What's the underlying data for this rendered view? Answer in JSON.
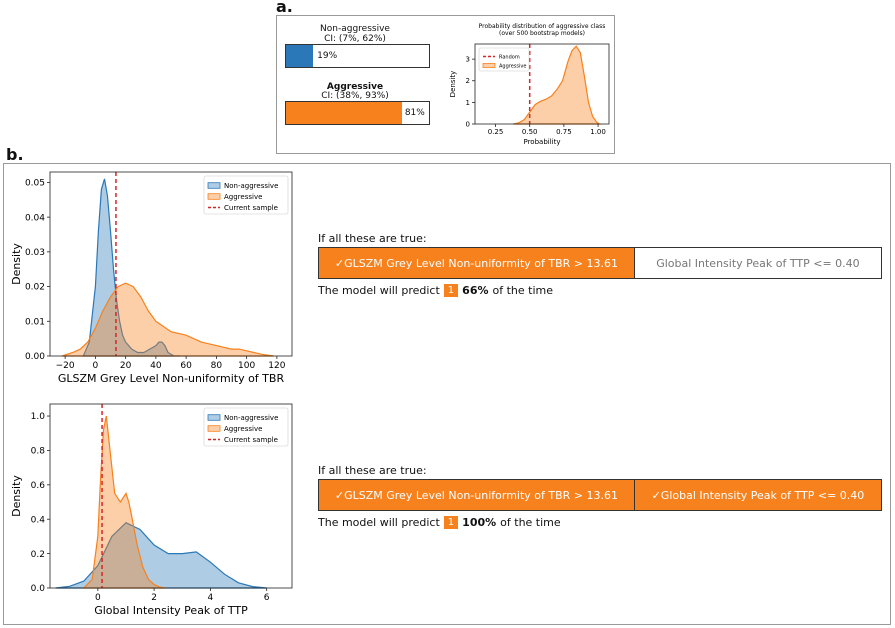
{
  "panel_a": {
    "label": "a.",
    "non_aggressive": {
      "title": "Non-aggressive",
      "ci": "CI: (7%, 62%)",
      "value_label": "19%",
      "value": 0.19,
      "color": "#2a78b8"
    },
    "aggressive": {
      "title": "Aggressive",
      "ci": "CI: (38%, 93%)",
      "value_label": "81%",
      "value": 0.81,
      "color": "#f7811d"
    }
  },
  "panel_b": {
    "label": "b.",
    "row1": {
      "intro": "If all these are true:",
      "rules": [
        {
          "text": "✓GLSZM Grey Level Non-uniformity of TBR > 13.61",
          "met": true
        },
        {
          "text": "Global Intensity Peak of TTP <= 0.40",
          "met": false
        }
      ],
      "predict_prefix": "The model will predict",
      "predict_class": "1",
      "predict_pct": "66%",
      "predict_suffix": "of the time"
    },
    "row2": {
      "intro": "If all these are true:",
      "rules": [
        {
          "text": "✓GLSZM Grey Level Non-uniformity of TBR > 13.61",
          "met": true
        },
        {
          "text": "✓Global Intensity Peak of TTP <= 0.40",
          "met": true
        }
      ],
      "predict_prefix": "The model will predict",
      "predict_class": "1",
      "predict_pct": "100%",
      "predict_suffix": "of the time"
    }
  },
  "colors": {
    "blue": "#2a78b8",
    "orange": "#f7811d",
    "red": "#d62728"
  },
  "chart_data": [
    {
      "id": "prob_dist",
      "type": "area",
      "title": "Probability distribution of aggressive class",
      "subtitle": "(over 500 bootstrap models)",
      "xlabel": "Probability",
      "ylabel": "Density",
      "xlim": [
        0.1,
        1.08
      ],
      "ylim": [
        0,
        3.7
      ],
      "xticks": [
        0.25,
        0.5,
        0.75,
        1.0
      ],
      "xtick_labels": [
        "0.25",
        "0.50",
        "0.75",
        "1.00"
      ],
      "yticks": [
        0,
        1,
        2,
        3
      ],
      "ytick_labels": [
        "0",
        "1",
        "2",
        "3"
      ],
      "legend": [
        "Random",
        "Aggressive"
      ],
      "legend_position": "top-left",
      "vline": 0.5,
      "series": [
        {
          "name": "Aggressive",
          "x": [
            0.38,
            0.42,
            0.46,
            0.5,
            0.54,
            0.58,
            0.62,
            0.66,
            0.7,
            0.74,
            0.78,
            0.81,
            0.84,
            0.87,
            0.9,
            0.93,
            0.96,
            0.99,
            1.01
          ],
          "y": [
            0,
            0.05,
            0.2,
            0.55,
            0.9,
            1.05,
            1.15,
            1.3,
            1.6,
            2.0,
            2.9,
            3.4,
            3.6,
            3.3,
            2.2,
            1.0,
            0.35,
            0.08,
            0
          ]
        }
      ]
    },
    {
      "id": "glszm_tbr",
      "type": "area",
      "xlabel": "GLSZM Grey Level Non-uniformity of TBR",
      "ylabel": "Density",
      "xlim": [
        -30,
        130
      ],
      "ylim": [
        0,
        0.053
      ],
      "xticks": [
        -20,
        0,
        20,
        40,
        60,
        80,
        100,
        120
      ],
      "xtick_labels": [
        "−20",
        "0",
        "20",
        "40",
        "60",
        "80",
        "100",
        "120"
      ],
      "yticks": [
        0,
        0.01,
        0.02,
        0.03,
        0.04,
        0.05
      ],
      "ytick_labels": [
        "0.00",
        "0.01",
        "0.02",
        "0.03",
        "0.04",
        "0.05"
      ],
      "legend": [
        "Non-aggressive",
        "Aggressive",
        "Current sample"
      ],
      "legend_position": "top-right",
      "vline": 13.6,
      "series": [
        {
          "name": "Non-aggressive",
          "x": [
            -8,
            -4,
            0,
            2,
            4,
            6,
            8,
            10,
            12,
            14,
            16,
            18,
            20,
            24,
            28,
            32,
            36,
            40,
            42,
            44,
            46,
            48,
            52,
            56
          ],
          "y": [
            0,
            0.004,
            0.02,
            0.036,
            0.048,
            0.051,
            0.046,
            0.036,
            0.025,
            0.016,
            0.01,
            0.006,
            0.004,
            0.002,
            0.001,
            0.001,
            0.002,
            0.003,
            0.004,
            0.004,
            0.003,
            0.001,
            0,
            0
          ]
        },
        {
          "name": "Aggressive",
          "x": [
            -22,
            -15,
            -10,
            -5,
            0,
            5,
            10,
            15,
            20,
            25,
            30,
            35,
            40,
            50,
            60,
            70,
            80,
            90,
            95,
            100,
            110,
            118
          ],
          "y": [
            0,
            0.001,
            0.002,
            0.004,
            0.008,
            0.013,
            0.017,
            0.02,
            0.021,
            0.02,
            0.017,
            0.013,
            0.01,
            0.007,
            0.006,
            0.004,
            0.003,
            0.002,
            0.002,
            0.0015,
            0.0005,
            0
          ]
        }
      ]
    },
    {
      "id": "gip_ttp",
      "type": "area",
      "xlabel": "Global Intensity Peak of TTP",
      "ylabel": "Density",
      "xlim": [
        -1.7,
        6.9
      ],
      "ylim": [
        0,
        1.07
      ],
      "xticks": [
        0,
        2,
        4,
        6
      ],
      "xtick_labels": [
        "0",
        "2",
        "4",
        "6"
      ],
      "yticks": [
        0,
        0.2,
        0.4,
        0.6,
        0.8,
        1.0
      ],
      "ytick_labels": [
        "0.0",
        "0.2",
        "0.4",
        "0.6",
        "0.8",
        "1.0"
      ],
      "legend": [
        "Non-aggressive",
        "Aggressive",
        "Current sample"
      ],
      "legend_position": "top-right",
      "vline": 0.15,
      "series": [
        {
          "name": "Non-aggressive",
          "x": [
            -1.5,
            -1,
            -0.5,
            0,
            0.5,
            1,
            1.5,
            2,
            2.5,
            3,
            3.5,
            4,
            4.5,
            5,
            5.5,
            6
          ],
          "y": [
            0,
            0.01,
            0.04,
            0.13,
            0.3,
            0.38,
            0.34,
            0.25,
            0.2,
            0.2,
            0.21,
            0.15,
            0.08,
            0.03,
            0.008,
            0
          ]
        },
        {
          "name": "Aggressive",
          "x": [
            -0.5,
            -0.2,
            0,
            0.1,
            0.2,
            0.3,
            0.4,
            0.6,
            0.8,
            1,
            1.1,
            1.2,
            1.4,
            1.6,
            1.8,
            2,
            2.2,
            2.4
          ],
          "y": [
            0,
            0.05,
            0.3,
            0.65,
            0.92,
            1.0,
            0.85,
            0.55,
            0.5,
            0.55,
            0.5,
            0.42,
            0.25,
            0.12,
            0.05,
            0.02,
            0.005,
            0
          ]
        }
      ]
    }
  ]
}
